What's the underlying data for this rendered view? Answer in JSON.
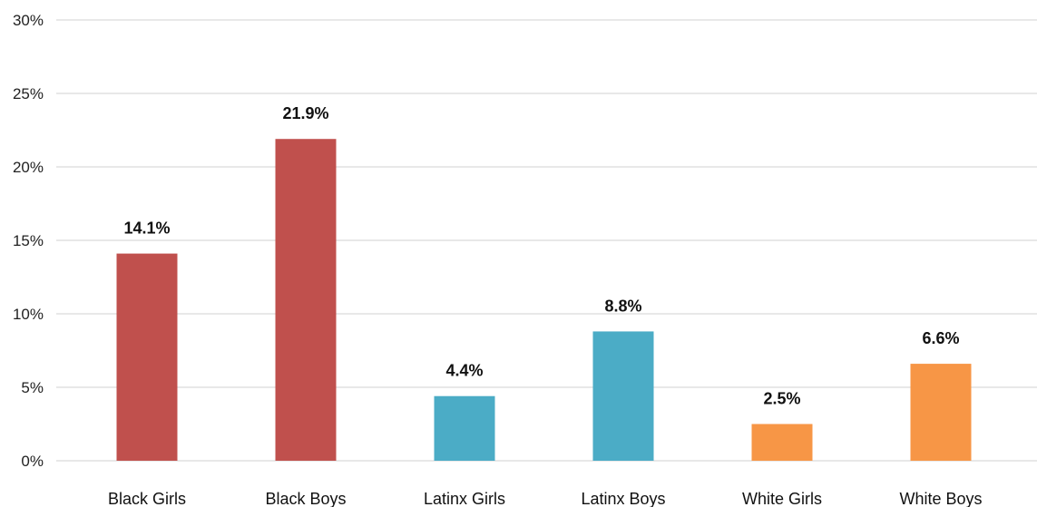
{
  "chart_data": {
    "type": "bar",
    "title": "",
    "xlabel": "",
    "ylabel": "",
    "categories": [
      "Black Girls",
      "Black Boys",
      "Latinx Girls",
      "Latinx Boys",
      "White Girls",
      "White Boys"
    ],
    "values": [
      14.1,
      21.9,
      4.4,
      8.8,
      2.5,
      6.6
    ],
    "data_labels": [
      "14.1%",
      "21.9%",
      "4.4%",
      "8.8%",
      "2.5%",
      "6.6%"
    ],
    "bar_colors": [
      "#c0504d",
      "#c0504d",
      "#4bacc6",
      "#4bacc6",
      "#f79646",
      "#f79646"
    ],
    "ylim": [
      0,
      30
    ],
    "yticks": [
      0,
      5,
      10,
      15,
      20,
      25,
      30
    ],
    "ytick_labels": [
      "0%",
      "5%",
      "10%",
      "15%",
      "20%",
      "25%",
      "30%"
    ],
    "grid": true,
    "legend": "none"
  }
}
